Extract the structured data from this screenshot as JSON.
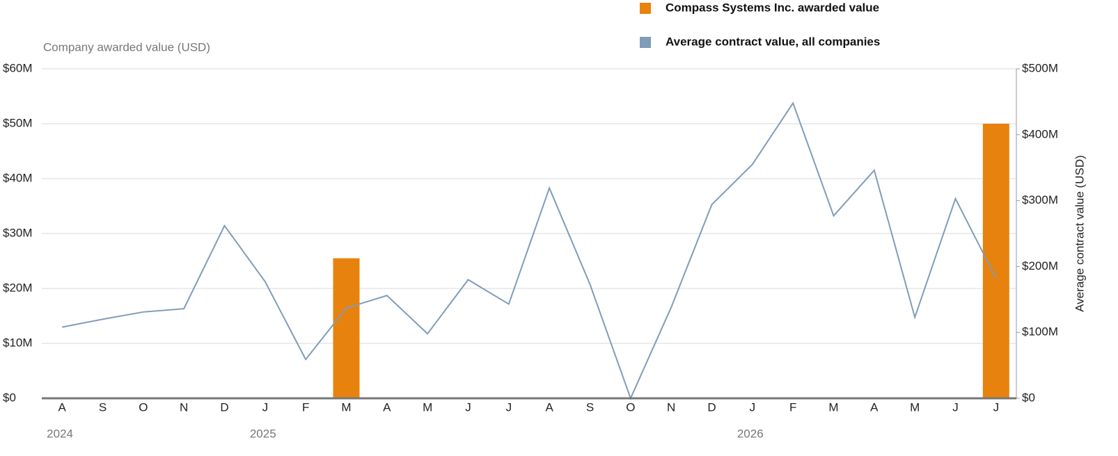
{
  "chart_data": {
    "type": "bar_line",
    "legend": "top",
    "grid": true,
    "y_axis_label": "Company awarded value (USD)",
    "y2_axis_label": "Average contract value (USD)",
    "categories": [
      "A",
      "S",
      "O",
      "N",
      "D",
      "J",
      "F",
      "M",
      "A",
      "M",
      "J",
      "J",
      "A",
      "S",
      "O",
      "N",
      "D",
      "J",
      "F",
      "M",
      "A",
      "M",
      "J",
      "J"
    ],
    "year_labels": [
      "2024",
      null,
      null,
      null,
      null,
      "2025",
      null,
      null,
      null,
      null,
      null,
      null,
      null,
      null,
      null,
      null,
      null,
      "2026",
      null,
      null,
      null,
      null,
      null,
      null
    ],
    "series": [
      {
        "name": "Compass Systems Inc. awarded value",
        "type": "bar",
        "color": "#e8820e",
        "values": [
          null,
          null,
          null,
          null,
          null,
          null,
          null,
          25500000,
          null,
          null,
          null,
          null,
          null,
          null,
          null,
          null,
          null,
          null,
          null,
          null,
          null,
          null,
          null,
          50000000
        ]
      },
      {
        "name": "Average contract value, all companies",
        "type": "line",
        "axis": "y2",
        "color": "#7f9cb9",
        "values": [
          108000000,
          120000000,
          131000000,
          136000000,
          262000000,
          177000000,
          59000000,
          137000000,
          156000000,
          98000000,
          180000000,
          143000000,
          319000000,
          173000000,
          0,
          138000000,
          294000000,
          355000000,
          448000000,
          277000000,
          346000000,
          123000000,
          303000000,
          182000000
        ]
      }
    ],
    "ylim": [
      0,
      60000000
    ],
    "yticks": [
      {
        "value": 0,
        "label": "$0"
      },
      {
        "value": 10000000,
        "label": "$10M"
      },
      {
        "value": 20000000,
        "label": "$20M"
      },
      {
        "value": 30000000,
        "label": "$30M"
      },
      {
        "value": 40000000,
        "label": "$40M"
      },
      {
        "value": 50000000,
        "label": "$50M"
      },
      {
        "value": 60000000,
        "label": "$60M"
      }
    ],
    "y2lim": [
      0,
      500000000
    ],
    "y2ticks": [
      {
        "value": 0,
        "label": "$0"
      },
      {
        "value": 100000000,
        "label": "$100M"
      },
      {
        "value": 200000000,
        "label": "$200M"
      },
      {
        "value": 300000000,
        "label": "$300M"
      },
      {
        "value": 400000000,
        "label": "$400M"
      },
      {
        "value": 500000000,
        "label": "$500M"
      }
    ]
  }
}
